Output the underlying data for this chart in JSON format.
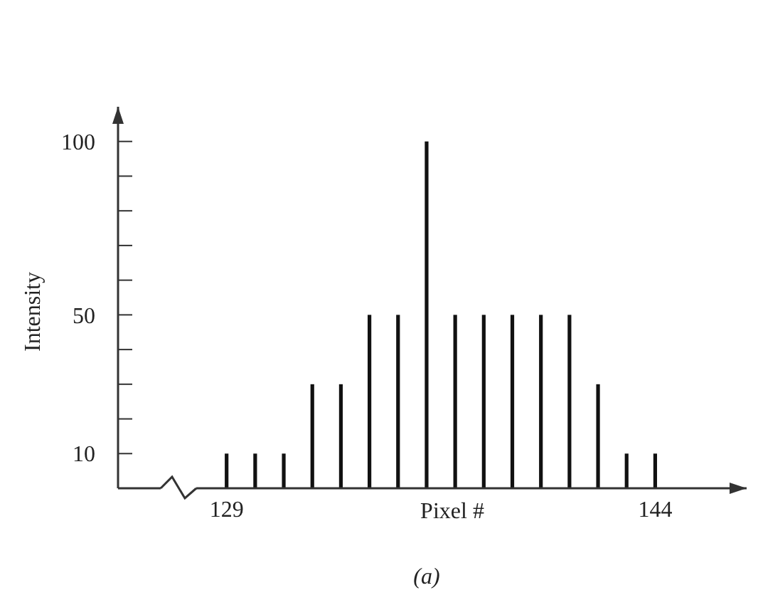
{
  "chart_data": {
    "type": "bar",
    "xlabel": "Pixel #",
    "ylabel": "Intensity",
    "x": [
      129,
      130,
      131,
      132,
      133,
      134,
      135,
      136,
      137,
      138,
      139,
      140,
      141,
      142,
      143,
      144
    ],
    "values": [
      10,
      10,
      10,
      30,
      30,
      50,
      50,
      100,
      50,
      50,
      50,
      50,
      50,
      30,
      10,
      10
    ],
    "color": "#111111",
    "xlim": [
      125.2,
      147.2
    ],
    "xticks": [
      129,
      144
    ],
    "ylim": [
      0,
      110
    ],
    "yticks": [
      10,
      {
        "value": 20,
        "label": null
      },
      {
        "value": 30,
        "label": null
      },
      {
        "value": 40,
        "label": null
      },
      50,
      {
        "value": 60,
        "label": null
      },
      {
        "value": 70,
        "label": null
      },
      {
        "value": 80,
        "label": null
      },
      {
        "value": 90,
        "label": null
      },
      100
    ],
    "grid": false,
    "annotations": [
      "(a)"
    ]
  }
}
